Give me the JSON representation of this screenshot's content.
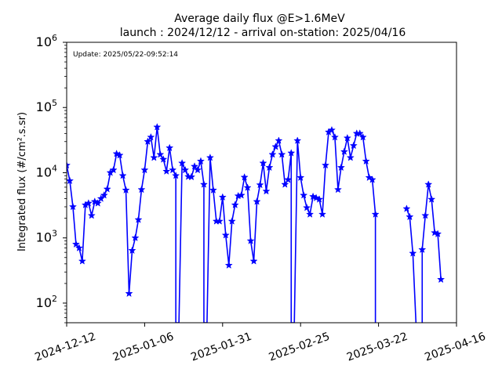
{
  "chart_data": {
    "type": "line",
    "title": "Average daily flux @E>1.6MeV",
    "subtitle": "launch : 2024/12/12 - arrival on-station: 2025/04/16",
    "annotation": "Update: 2025/05/22-09:52:14",
    "ylabel": "Integrated flux (#/cm².s.sr)",
    "xlabel": "",
    "y_scale": "log",
    "ylim": [
      50,
      1000000
    ],
    "xlim": [
      "2024-12-12",
      "2025-04-16"
    ],
    "x_ticks": [
      "2024-12-12",
      "2025-01-06",
      "2025-01-31",
      "2025-02-25",
      "2025-03-22",
      "2025-04-16"
    ],
    "y_ticks": [
      {
        "value": 100,
        "base": "10",
        "exp": "2"
      },
      {
        "value": 1000,
        "base": "10",
        "exp": "3"
      },
      {
        "value": 10000,
        "base": "10",
        "exp": "4"
      },
      {
        "value": 100000,
        "base": "10",
        "exp": "5"
      },
      {
        "value": 1000000,
        "base": "10",
        "exp": "6"
      }
    ],
    "grid": false,
    "legend": "none",
    "color": "#0000ff",
    "marker": "star",
    "series": [
      {
        "points": [
          [
            "2024-12-12",
            13000
          ],
          [
            "2024-12-13",
            7500
          ],
          [
            "2024-12-14",
            3000
          ],
          [
            "2024-12-15",
            800
          ],
          [
            "2024-12-16",
            700
          ],
          [
            "2024-12-17",
            440
          ],
          [
            "2024-12-18",
            3200
          ],
          [
            "2024-12-19",
            3400
          ],
          [
            "2024-12-20",
            2200
          ],
          [
            "2024-12-21",
            3600
          ],
          [
            "2024-12-22",
            3400
          ],
          [
            "2024-12-23",
            4000
          ],
          [
            "2024-12-24",
            4500
          ],
          [
            "2024-12-25",
            5600
          ],
          [
            "2024-12-26",
            10000
          ],
          [
            "2024-12-27",
            11000
          ],
          [
            "2024-12-28",
            19500
          ],
          [
            "2024-12-29",
            18500
          ],
          [
            "2024-12-30",
            9000
          ],
          [
            "2024-12-31",
            5400
          ],
          [
            "2025-01-01",
            140
          ],
          [
            "2025-01-02",
            640
          ],
          [
            "2025-01-03",
            1000
          ],
          [
            "2025-01-04",
            1900
          ],
          [
            "2025-01-05",
            5500
          ],
          [
            "2025-01-06",
            11000
          ],
          [
            "2025-01-07",
            30000
          ],
          [
            "2025-01-08",
            35000
          ],
          [
            "2025-01-09",
            17000
          ],
          [
            "2025-01-10",
            50000
          ],
          [
            "2025-01-11",
            19000
          ],
          [
            "2025-01-12",
            16000
          ],
          [
            "2025-01-13",
            10500
          ],
          [
            "2025-01-14",
            24000
          ],
          [
            "2025-01-15",
            11000
          ],
          [
            "2025-01-16",
            9000
          ],
          [
            "2025-01-16",
            50
          ],
          [
            "2025-01-17",
            50
          ],
          [
            "2025-01-18",
            14000
          ],
          [
            "2025-01-19",
            11000
          ],
          [
            "2025-01-20",
            8700
          ],
          [
            "2025-01-21",
            8600
          ],
          [
            "2025-01-22",
            12500
          ],
          [
            "2025-01-23",
            11000
          ],
          [
            "2025-01-24",
            15000
          ],
          [
            "2025-01-25",
            6600
          ],
          [
            "2025-01-25",
            50
          ],
          [
            "2025-01-26",
            50
          ],
          [
            "2025-01-27",
            17000
          ],
          [
            "2025-01-28",
            5400
          ],
          [
            "2025-01-29",
            1800
          ],
          [
            "2025-01-30",
            1800
          ],
          [
            "2025-01-31",
            4200
          ],
          [
            "2025-02-01",
            1100
          ],
          [
            "2025-02-02",
            380
          ],
          [
            "2025-02-03",
            1800
          ],
          [
            "2025-02-04",
            3200
          ],
          [
            "2025-02-05",
            4400
          ],
          [
            "2025-02-06",
            4500
          ],
          [
            "2025-02-07",
            8500
          ],
          [
            "2025-02-08",
            5900
          ],
          [
            "2025-02-09",
            900
          ],
          [
            "2025-02-10",
            440
          ],
          [
            "2025-02-11",
            3600
          ],
          [
            "2025-02-12",
            6500
          ],
          [
            "2025-02-13",
            14000
          ],
          [
            "2025-02-14",
            5200
          ],
          [
            "2025-02-15",
            12000
          ],
          [
            "2025-02-16",
            19000
          ],
          [
            "2025-02-17",
            25000
          ],
          [
            "2025-02-18",
            31000
          ],
          [
            "2025-02-19",
            19000
          ],
          [
            "2025-02-20",
            6600
          ],
          [
            "2025-02-21",
            7800
          ],
          [
            "2025-02-22",
            20000
          ],
          [
            "2025-02-22",
            50
          ],
          [
            "2025-02-23",
            50
          ],
          [
            "2025-02-24",
            31000
          ],
          [
            "2025-02-25",
            8400
          ],
          [
            "2025-02-26",
            4500
          ],
          [
            "2025-02-27",
            2900
          ],
          [
            "2025-02-28",
            2300
          ],
          [
            "2025-03-01",
            4300
          ],
          [
            "2025-03-02",
            4100
          ],
          [
            "2025-03-03",
            3900
          ],
          [
            "2025-03-04",
            2300
          ],
          [
            "2025-03-05",
            13000
          ],
          [
            "2025-03-06",
            42000
          ],
          [
            "2025-03-07",
            45000
          ],
          [
            "2025-03-08",
            35000
          ],
          [
            "2025-03-09",
            5500
          ],
          [
            "2025-03-10",
            12000
          ],
          [
            "2025-03-11",
            21000
          ],
          [
            "2025-03-12",
            34000
          ],
          [
            "2025-03-13",
            17000
          ],
          [
            "2025-03-14",
            26000
          ],
          [
            "2025-03-15",
            40000
          ],
          [
            "2025-03-16",
            40000
          ],
          [
            "2025-03-17",
            35000
          ],
          [
            "2025-03-18",
            15000
          ],
          [
            "2025-03-19",
            8400
          ],
          [
            "2025-03-20",
            7800
          ],
          [
            "2025-03-21",
            2300
          ],
          [
            "2025-03-21",
            50
          ]
        ]
      },
      {
        "points": [
          [
            "2025-03-31",
            2800
          ],
          [
            "2025-04-01",
            2100
          ],
          [
            "2025-04-02",
            580
          ],
          [
            "2025-04-03",
            50
          ]
        ]
      },
      {
        "points": [
          [
            "2025-04-05",
            50
          ],
          [
            "2025-04-05",
            660
          ],
          [
            "2025-04-06",
            2200
          ],
          [
            "2025-04-07",
            6600
          ],
          [
            "2025-04-08",
            3900
          ],
          [
            "2025-04-09",
            1200
          ],
          [
            "2025-04-10",
            1150
          ],
          [
            "2025-04-11",
            230
          ]
        ]
      }
    ]
  }
}
